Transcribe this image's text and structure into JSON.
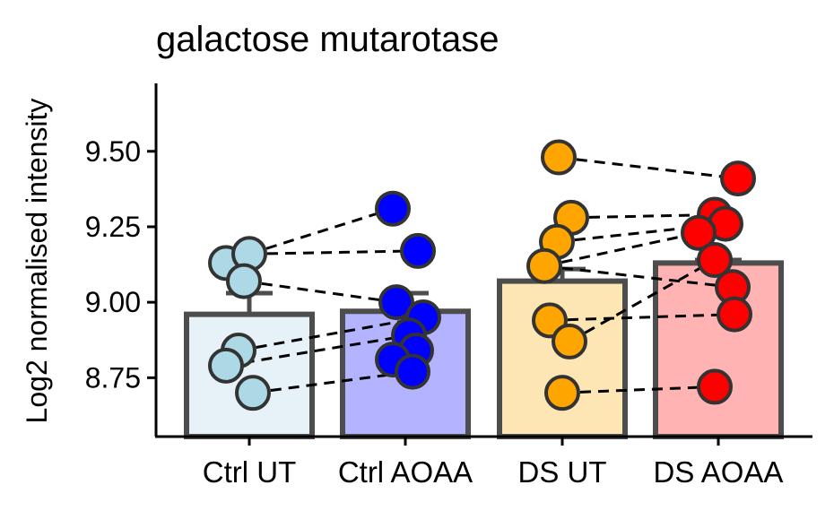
{
  "chart_data": {
    "type": "bar",
    "title": "galactose mutarotase",
    "xlabel": "",
    "ylabel": "Log2 normalised intensity",
    "ylim": [
      8.555,
      9.725
    ],
    "yticks": [
      "8.75",
      "9.00",
      "9.25",
      "9.50"
    ],
    "categories": [
      "Ctrl UT",
      "Ctrl AOAA",
      "DS UT",
      "DS AOAA"
    ],
    "bar_values": [
      8.96,
      8.97,
      9.07,
      9.13
    ],
    "error_upper": [
      9.03,
      9.03,
      9.11,
      9.14
    ],
    "bar_fill_colors": [
      "#e6f2f8",
      "#b3b3ff",
      "#fde6b3",
      "#ffb3b3"
    ],
    "point_colors": [
      "#add8e6",
      "#0000ff",
      "#ffa500",
      "#ff0000"
    ],
    "points": [
      [
        9.13,
        9.16,
        9.07,
        8.84,
        8.79,
        8.7
      ],
      [
        9.31,
        9.17,
        9.0,
        8.95,
        8.89,
        8.84,
        8.81,
        8.77
      ],
      [
        9.48,
        9.28,
        9.2,
        9.12,
        8.94,
        8.87,
        8.7
      ],
      [
        9.41,
        9.29,
        9.26,
        9.23,
        9.14,
        9.05,
        8.96,
        8.72
      ]
    ],
    "paired_lines": [
      {
        "from": [
          0,
          9.16
        ],
        "to": [
          1,
          9.17
        ]
      },
      {
        "from": [
          0,
          9.07
        ],
        "to": [
          1,
          9.0
        ]
      },
      {
        "from": [
          0,
          8.84
        ],
        "to": [
          1,
          8.95
        ]
      },
      {
        "from": [
          0,
          8.79
        ],
        "to": [
          1,
          8.89
        ]
      },
      {
        "from": [
          0,
          8.7
        ],
        "to": [
          1,
          8.77
        ]
      },
      {
        "from": [
          0,
          9.16
        ],
        "to": [
          1,
          9.31
        ]
      },
      {
        "from": [
          2,
          9.48
        ],
        "to": [
          3,
          9.41
        ]
      },
      {
        "from": [
          2,
          9.28
        ],
        "to": [
          3,
          9.29
        ]
      },
      {
        "from": [
          2,
          9.2
        ],
        "to": [
          3,
          9.26
        ]
      },
      {
        "from": [
          2,
          9.12
        ],
        "to": [
          3,
          9.05
        ]
      },
      {
        "from": [
          2,
          8.94
        ],
        "to": [
          3,
          8.96
        ]
      },
      {
        "from": [
          2,
          8.87
        ],
        "to": [
          3,
          9.14
        ]
      },
      {
        "from": [
          2,
          8.7
        ],
        "to": [
          3,
          8.72
        ]
      },
      {
        "from": [
          2,
          9.12
        ],
        "to": [
          3,
          9.23
        ]
      }
    ],
    "grid": false,
    "legend": "none"
  }
}
